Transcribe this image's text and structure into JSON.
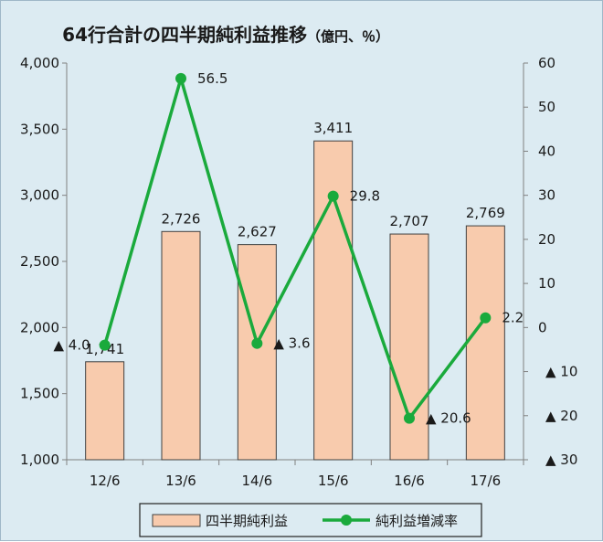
{
  "chart_data": {
    "type": "bar",
    "title": "64行合計の四半期純利益推移",
    "subtitle": "（億円、％）",
    "categories": [
      "12/6",
      "13/6",
      "14/6",
      "15/6",
      "16/6",
      "17/6"
    ],
    "series": [
      {
        "name": "四半期純利益",
        "type": "bar",
        "axis": "left",
        "color": "#f8cbad",
        "values": [
          1741,
          2726,
          2627,
          3411,
          2707,
          2769
        ],
        "labels": [
          "1,741",
          "2,726",
          "2,627",
          "3,411",
          "2,707",
          "2,769"
        ]
      },
      {
        "name": "純利益増減率",
        "type": "line",
        "axis": "right",
        "color": "#1aaa3c",
        "values": [
          -4.0,
          56.5,
          -3.6,
          29.8,
          -20.6,
          2.2
        ],
        "labels": [
          "▲ 4.0",
          "56.5",
          "▲ 3.6",
          "29.8",
          "▲ 20.6",
          "2.2"
        ]
      }
    ],
    "y_left": {
      "lim": [
        1000,
        4000
      ],
      "ticks": [
        1000,
        1500,
        2000,
        2500,
        3000,
        3500,
        4000
      ],
      "tick_labels": [
        "1,000",
        "1,500",
        "2,000",
        "2,500",
        "3,000",
        "3,500",
        "4,000"
      ]
    },
    "y_right": {
      "lim": [
        -30,
        60
      ],
      "ticks": [
        -30,
        -20,
        -10,
        0,
        10,
        20,
        30,
        40,
        50,
        60
      ],
      "tick_labels": [
        "▲ 30",
        "▲ 20",
        "▲ 10",
        "0",
        "10",
        "20",
        "30",
        "40",
        "50",
        "60"
      ]
    },
    "grid": false,
    "legend_position": "bottom",
    "colors": {
      "background": "#dcebf2",
      "bar_fill": "#f8cbad",
      "bar_stroke": "#404040",
      "line": "#1aaa3c"
    }
  }
}
